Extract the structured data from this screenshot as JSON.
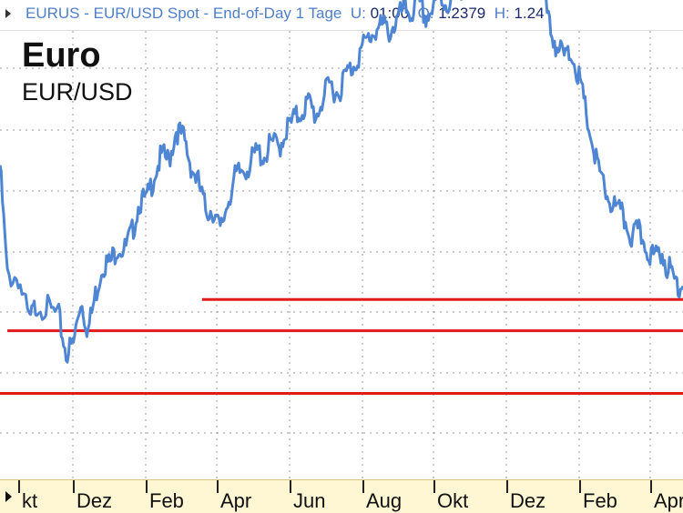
{
  "header": {
    "symbol": "EURUS",
    "description": "EUR/USD Spot - End-of-Day 1 Tage",
    "u_label": "U:",
    "u_value": "01:00",
    "o_label": "O:",
    "o_value": "1.2379",
    "h_label": "H:",
    "h_value": "1.24"
  },
  "chart_data": {
    "type": "line",
    "title": "Euro",
    "subtitle": "EUR/USD",
    "x_ticks": [
      "kt",
      "Dez",
      "Feb",
      "Apr",
      "Jun",
      "Aug",
      "Okt",
      "Dez",
      "Feb",
      "Apr"
    ],
    "series": [
      {
        "color": "#4f86d4",
        "points": [
          [
            0.0,
            0.7
          ],
          [
            0.02,
            0.45
          ],
          [
            0.05,
            0.45
          ],
          [
            0.08,
            0.35
          ],
          [
            0.1,
            0.39
          ],
          [
            0.13,
            0.38
          ],
          [
            0.16,
            0.36
          ],
          [
            0.18,
            0.28
          ],
          [
            0.2,
            0.3
          ],
          [
            0.22,
            0.4
          ],
          [
            0.24,
            0.33
          ],
          [
            0.26,
            0.41
          ],
          [
            0.28,
            0.48
          ],
          [
            0.3,
            0.48
          ],
          [
            0.32,
            0.52
          ],
          [
            0.34,
            0.51
          ],
          [
            0.36,
            0.55
          ],
          [
            0.38,
            0.62
          ],
          [
            0.4,
            0.62
          ],
          [
            0.42,
            0.68
          ],
          [
            0.44,
            0.72
          ],
          [
            0.46,
            0.71
          ],
          [
            0.48,
            0.78
          ],
          [
            0.5,
            0.76
          ],
          [
            0.52,
            0.7
          ],
          [
            0.54,
            0.66
          ],
          [
            0.56,
            0.6
          ],
          [
            0.58,
            0.6
          ],
          [
            0.6,
            0.55
          ],
          [
            0.62,
            0.62
          ],
          [
            0.64,
            0.67
          ],
          [
            0.66,
            0.69
          ],
          [
            0.68,
            0.7
          ],
          [
            0.7,
            0.73
          ],
          [
            0.72,
            0.72
          ],
          [
            0.74,
            0.75
          ],
          [
            0.76,
            0.74
          ],
          [
            0.78,
            0.78
          ],
          [
            0.8,
            0.8
          ],
          [
            0.82,
            0.82
          ],
          [
            0.84,
            0.84
          ],
          [
            0.86,
            0.81
          ],
          [
            0.88,
            0.85
          ],
          [
            0.9,
            0.88
          ],
          [
            0.92,
            0.86
          ],
          [
            0.94,
            0.9
          ],
          [
            0.96,
            0.92
          ],
          [
            0.98,
            0.95
          ],
          [
            1.0,
            0.98
          ],
          [
            1.02,
            1.0
          ],
          [
            1.04,
            1.01
          ],
          [
            1.06,
            1.0
          ],
          [
            1.08,
            1.02
          ],
          [
            1.1,
            1.05
          ],
          [
            1.12,
            1.04
          ],
          [
            1.14,
            1.06
          ],
          [
            1.16,
            1.03
          ],
          [
            1.18,
            1.05
          ],
          [
            1.2,
            1.07
          ],
          [
            1.22,
            1.06
          ],
          [
            1.24,
            1.08
          ],
          [
            1.26,
            1.1
          ],
          [
            1.28,
            1.12
          ],
          [
            1.3,
            1.15
          ],
          [
            1.32,
            1.16
          ],
          [
            1.34,
            1.14
          ],
          [
            1.36,
            1.17
          ],
          [
            1.38,
            1.18
          ],
          [
            1.4,
            1.2
          ],
          [
            1.42,
            1.19
          ],
          [
            1.44,
            1.17
          ],
          [
            1.46,
            1.15
          ],
          [
            1.48,
            1.08
          ],
          [
            1.5,
            1.0
          ],
          [
            1.52,
            0.96
          ],
          [
            1.54,
            0.94
          ],
          [
            1.56,
            0.95
          ],
          [
            1.58,
            0.88
          ],
          [
            1.6,
            0.8
          ],
          [
            1.62,
            0.72
          ],
          [
            1.64,
            0.66
          ],
          [
            1.66,
            0.62
          ],
          [
            1.68,
            0.6
          ],
          [
            1.7,
            0.58
          ],
          [
            1.72,
            0.54
          ],
          [
            1.74,
            0.55
          ],
          [
            1.76,
            0.52
          ],
          [
            1.78,
            0.49
          ],
          [
            1.8,
            0.51
          ],
          [
            1.82,
            0.47
          ],
          [
            1.84,
            0.44
          ],
          [
            1.86,
            0.43
          ]
        ]
      }
    ],
    "support_lines": [
      {
        "from": 0.02,
        "to": 1.86,
        "y": 0.33,
        "color": "#e01919"
      },
      {
        "from": 0.55,
        "to": 1.86,
        "y": 0.4,
        "color": "#e01919"
      },
      {
        "from": 0.0,
        "to": 1.86,
        "y": 0.19,
        "color": "#e01919"
      }
    ],
    "grid": true
  }
}
